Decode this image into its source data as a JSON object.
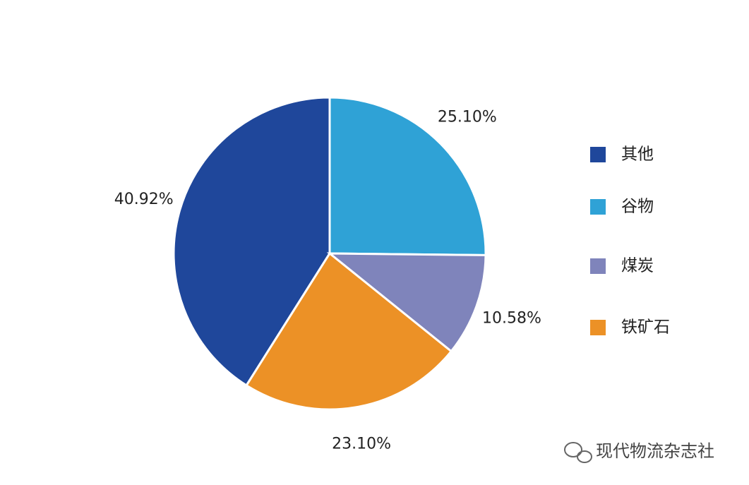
{
  "chart_data": {
    "type": "pie",
    "categories": [
      "其他",
      "谷物",
      "煤炭",
      "铁矿石"
    ],
    "values": [
      40.92,
      25.1,
      10.58,
      23.1
    ],
    "value_labels": [
      "40.92%",
      "25.10%",
      "10.58%",
      "23.10%"
    ],
    "colors": [
      "#1f479b",
      "#2fa2d6",
      "#7f84bb",
      "#ec9126"
    ],
    "legend": "right"
  },
  "watermark": "现代物流杂志社"
}
